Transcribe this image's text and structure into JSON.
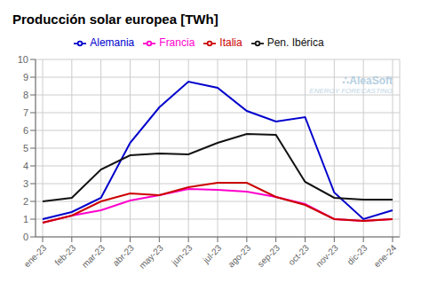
{
  "chart_data": {
    "type": "line",
    "title": "Producción solar europea [TWh]",
    "categories": [
      "ene-23",
      "feb-23",
      "mar-23",
      "abr-23",
      "may-23",
      "jun-23",
      "jul-23",
      "ago-23",
      "sep-23",
      "oct-23",
      "nov-23",
      "dic-23",
      "ene-24"
    ],
    "series": [
      {
        "name": "Alemania",
        "color": "#0000cc",
        "values": [
          1.0,
          1.4,
          2.2,
          5.3,
          7.3,
          8.75,
          8.4,
          7.1,
          6.5,
          6.75,
          2.5,
          1.0,
          1.5
        ]
      },
      {
        "name": "Francia",
        "color": "#ff00cc",
        "values": [
          0.8,
          1.2,
          1.5,
          2.05,
          2.35,
          2.7,
          2.65,
          2.55,
          2.25,
          1.85,
          1.0,
          0.9,
          1.0
        ]
      },
      {
        "name": "Pen. Ibérica",
        "color": "#111111",
        "values": [
          2.0,
          2.2,
          3.8,
          4.6,
          4.7,
          4.65,
          5.3,
          5.8,
          5.75,
          3.1,
          2.2,
          2.1,
          2.1
        ]
      },
      {
        "name": "Italia",
        "color": "#cc0000",
        "values": [
          0.8,
          1.2,
          2.0,
          2.45,
          2.35,
          2.8,
          3.05,
          3.05,
          2.25,
          1.8,
          1.0,
          0.9,
          1.0
        ]
      }
    ],
    "ylim": [
      0,
      10
    ],
    "yticks": [
      0,
      1,
      2,
      3,
      4,
      5,
      6,
      7,
      8,
      9,
      10
    ],
    "grid": true,
    "legend": "top",
    "annotations": [
      "∴AleaSoft",
      "ENERGY FORECASTING"
    ]
  }
}
